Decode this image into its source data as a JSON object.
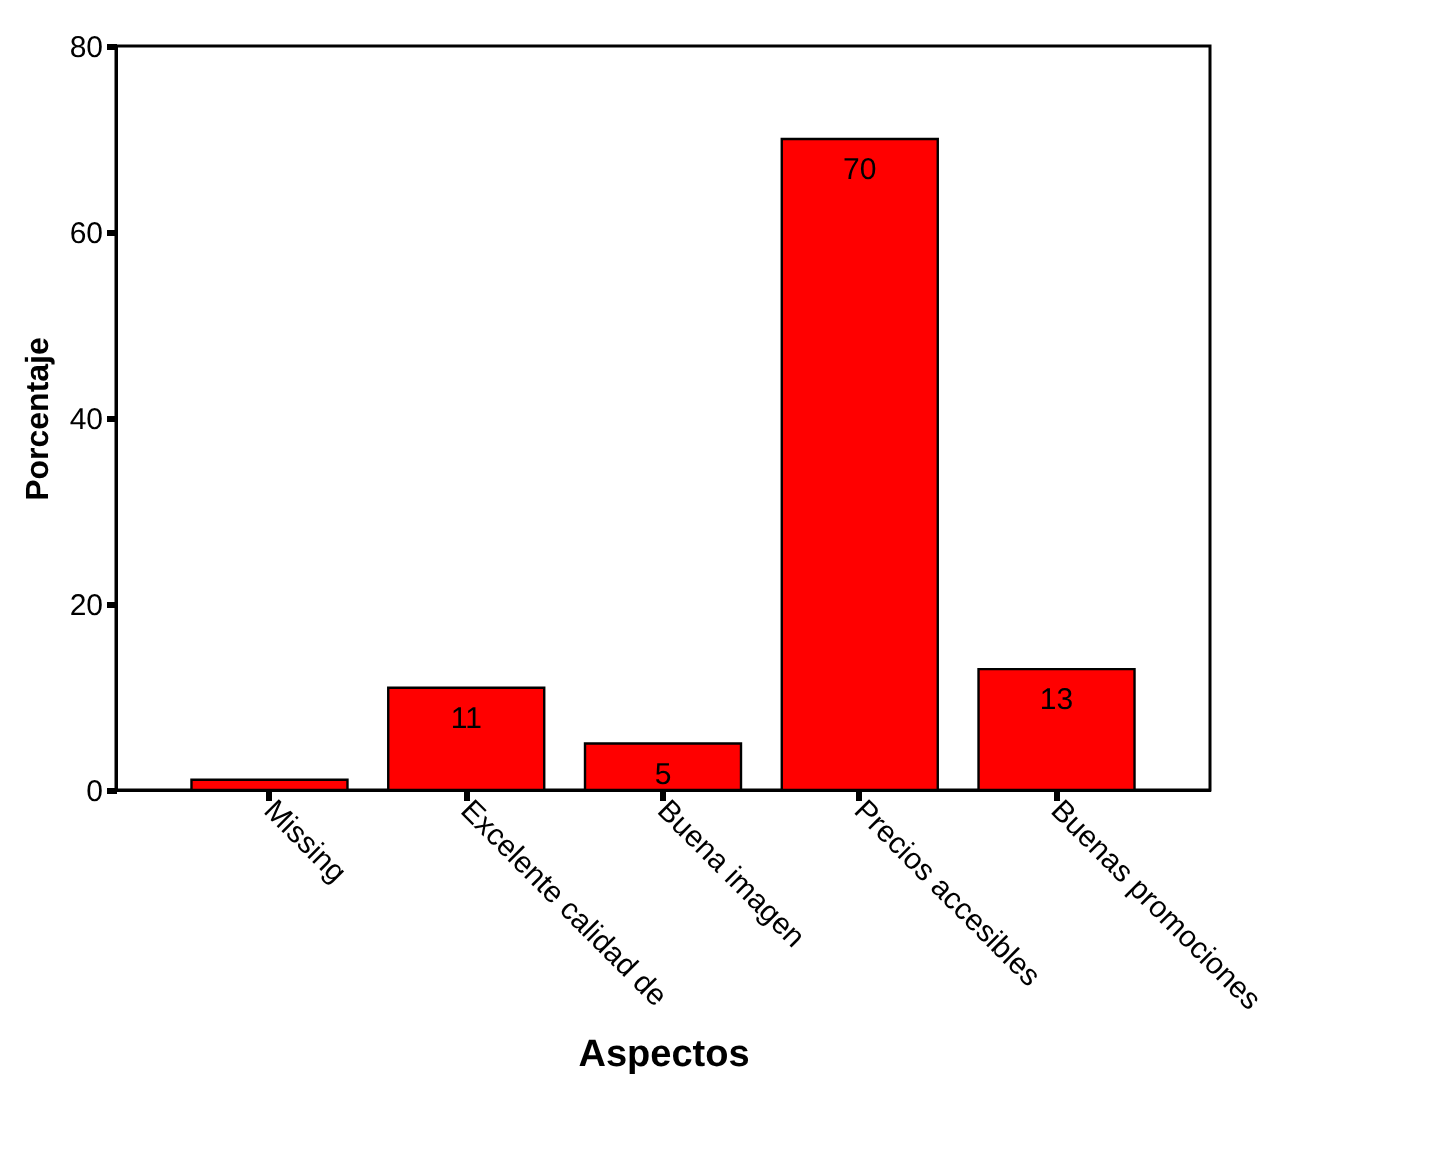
{
  "chart_data": {
    "type": "bar",
    "categories": [
      "Missing",
      "Excelente calidad de",
      "Buena imagen",
      "Precios accesibles",
      "Buenas promociones"
    ],
    "values": [
      1.1,
      11,
      5,
      70,
      13
    ],
    "value_labels": [
      null,
      "11",
      "5",
      "70",
      "13"
    ],
    "color": "#ff0000",
    "xlabel": "Aspectos",
    "ylabel": "Porcentaje",
    "ylim": [
      0,
      80
    ],
    "yticks": [
      0,
      20,
      40,
      60,
      80
    ],
    "grid": false
  }
}
